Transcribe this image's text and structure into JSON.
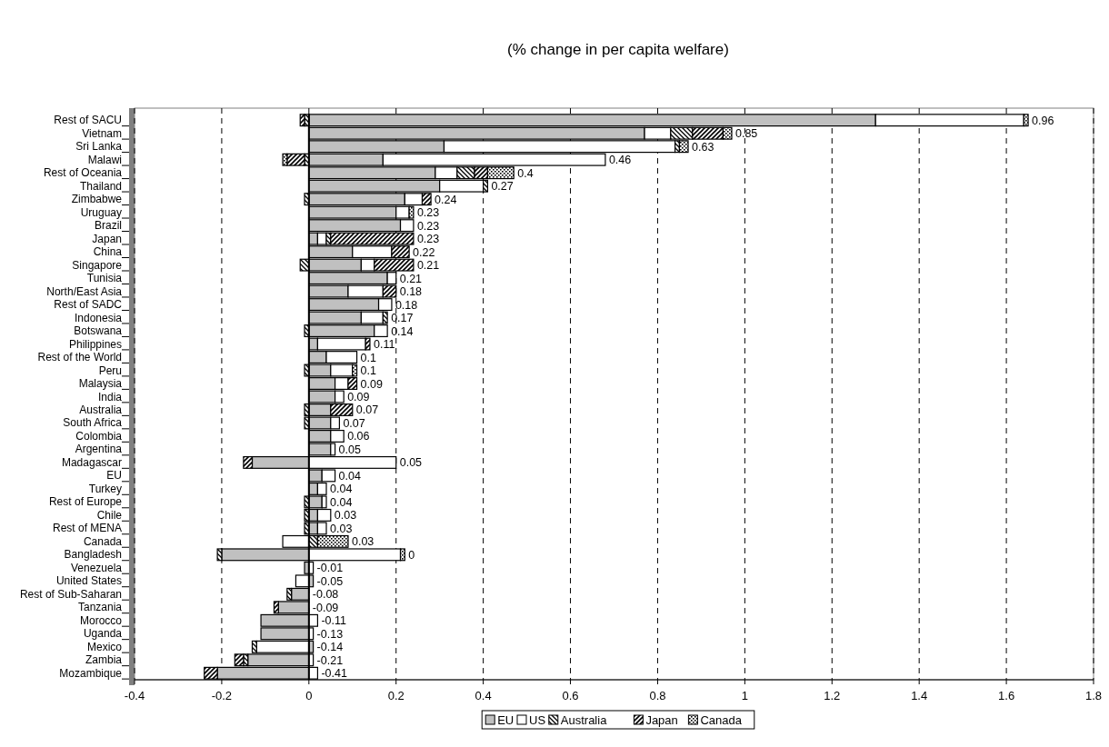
{
  "chart_data": {
    "type": "bar",
    "orientation": "horizontal",
    "stacked": true,
    "title": "(% change in per capita welfare)",
    "categories": [
      "Rest of SACU",
      "Vietnam",
      "Sri Lanka",
      "Malawi",
      "Rest of Oceania",
      "Thailand",
      "Zimbabwe",
      "Uruguay",
      "Brazil",
      "Japan",
      "China",
      "Singapore",
      "Tunisia",
      "North/East Asia",
      "Rest of SADC",
      "Indonesia",
      "Botswana",
      "Philippines",
      "Rest of the World",
      "Peru",
      "Malaysia",
      "India",
      "Australia",
      "South Africa",
      "Colombia",
      "Argentina",
      "Madagascar",
      "EU",
      "Turkey",
      "Rest of Europe",
      "Chile",
      "Rest of MENA",
      "Canada",
      "Bangladesh",
      "Venezuela",
      "United States",
      "Rest of Sub-Saharan",
      "Tanzania",
      "Morocco",
      "Uganda",
      "Mexico",
      "Zambia",
      "Mozambique"
    ],
    "series": [
      {
        "name": "EU",
        "color": "#c0c0c0",
        "values": [
          1.3,
          0.77,
          0.31,
          0.17,
          0.29,
          0.3,
          0.22,
          0.2,
          0.21,
          0.02,
          0.1,
          0.12,
          0.18,
          0.09,
          0.16,
          0.12,
          0.15,
          0.02,
          0.04,
          0.05,
          0.06,
          0.06,
          0.05,
          0.05,
          0.05,
          0.05,
          -0.13,
          0.03,
          0.02,
          0.03,
          0.02,
          0.02,
          0,
          -0.2,
          -0.01,
          0.01,
          -0.04,
          -0.07,
          -0.11,
          -0.11,
          0.01,
          -0.14,
          -0.21
        ]
      },
      {
        "name": "US",
        "color": "#ffffff",
        "values": [
          0.34,
          0.06,
          0.53,
          0.51,
          0.05,
          0.1,
          0.04,
          0.03,
          0.03,
          0.02,
          0.09,
          0.03,
          0.02,
          0.08,
          0.03,
          0.05,
          0.03,
          0.11,
          0.07,
          0.05,
          0.03,
          0.02,
          0,
          0.02,
          0.03,
          0.01,
          0.2,
          0.03,
          0.02,
          0.01,
          0.03,
          0.02,
          -0.06,
          0.21,
          0.01,
          -0.03,
          0,
          0,
          0.02,
          0.01,
          -0.12,
          0.01,
          0.02
        ]
      },
      {
        "name": "Australia",
        "color": "#000000",
        "values": [
          -0.01,
          0.05,
          0.01,
          -0.01,
          0.04,
          0.01,
          -0.01,
          0,
          0,
          0.01,
          0,
          -0.02,
          0,
          0,
          0,
          0.01,
          -0.01,
          0,
          0,
          -0.01,
          0,
          0,
          -0.01,
          -0.01,
          0,
          0,
          0,
          0,
          0,
          -0.01,
          -0.01,
          -0.01,
          0.02,
          -0.01,
          0,
          0,
          -0.01,
          0,
          0,
          0,
          -0.01,
          -0.01,
          0
        ]
      },
      {
        "name": "Japan",
        "color": "#000000",
        "values": [
          -0.01,
          0.07,
          0,
          -0.04,
          0.03,
          0,
          0.02,
          0,
          0,
          0.19,
          0.04,
          0.09,
          0,
          0.03,
          0,
          0,
          0,
          0.01,
          0,
          0,
          0.02,
          0,
          0.05,
          0,
          0,
          0,
          -0.02,
          0,
          0,
          0,
          0,
          0,
          0,
          0,
          0,
          0,
          0,
          -0.01,
          0,
          0,
          0,
          -0.02,
          -0.03
        ]
      },
      {
        "name": "Canada",
        "color": "#000000",
        "values": [
          0.01,
          0.02,
          0.02,
          -0.01,
          0.06,
          0,
          0,
          0.01,
          0,
          0,
          0,
          0,
          0,
          0,
          0,
          0,
          0,
          0,
          0,
          0.01,
          0,
          0,
          0,
          0,
          0,
          0,
          0,
          0,
          0,
          0,
          0,
          0,
          0.07,
          0.01,
          0,
          0,
          0,
          0,
          0,
          0,
          0,
          0,
          0
        ]
      }
    ],
    "annotations": [
      "0.96",
      "0.85",
      "0.63",
      "0.46",
      "0.4",
      "0.27",
      "0.24",
      "0.23",
      "0.23",
      "0.23",
      "0.22",
      "0.21",
      "0.21",
      "0.18",
      "0.18",
      "0.17",
      "0.14",
      "0.11",
      "0.1",
      "0.1",
      "0.09",
      "0.09",
      "0.07",
      "0.07",
      "0.06",
      "0.05",
      "0.05",
      "0.04",
      "0.04",
      "0.04",
      "0.03",
      "0.03",
      "0.03",
      "0",
      "-0.01",
      "-0.05",
      "-0.08",
      "-0.09",
      "-0.11",
      "-0.13",
      "-0.14",
      "-0.21",
      "-0.41"
    ],
    "xlim": [
      -0.4,
      1.8
    ],
    "xticks": [
      -0.4,
      -0.2,
      0,
      0.2,
      0.4,
      0.6,
      0.8,
      1,
      1.2,
      1.4,
      1.6,
      1.8
    ],
    "grid": "x",
    "legend": "bottom"
  }
}
